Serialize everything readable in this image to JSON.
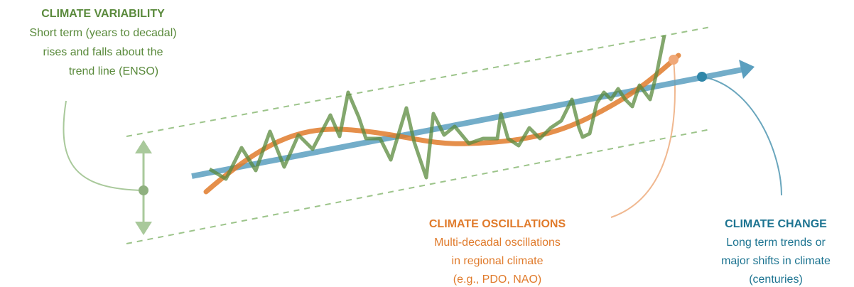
{
  "labels": [
    {
      "title": "CLIMATE VARIABILITY",
      "lines": [
        "Short term (years to decadal)",
        "rises and falls about the",
        "trend line (ENSO)"
      ]
    },
    {
      "title": "CLIMATE OSCILLATIONS",
      "lines": [
        "Multi-decadal oscillations",
        "in regional climate",
        "(e.g., PDO, NAO)"
      ]
    },
    {
      "title": "CLIMATE CHANGE",
      "lines": [
        "Long term trends or",
        "major shifts in climate",
        "(centuries)"
      ]
    }
  ]
}
